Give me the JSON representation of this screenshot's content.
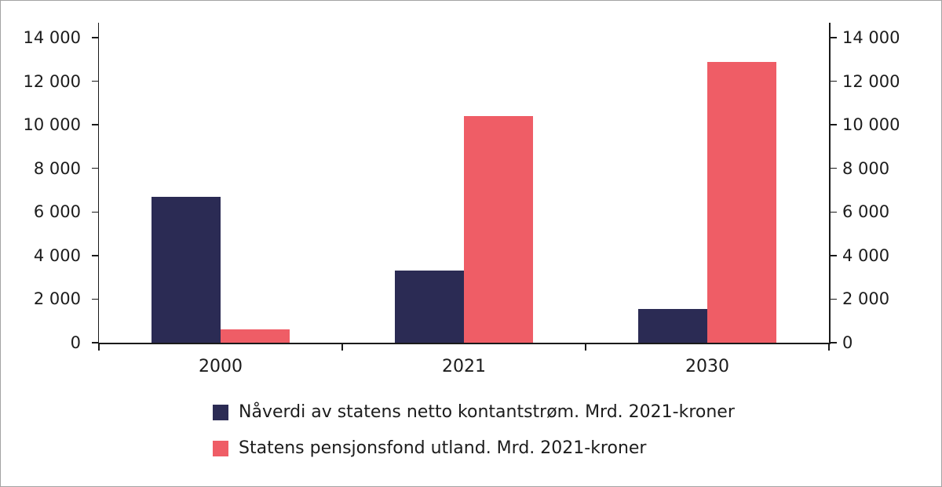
{
  "chart_data": {
    "type": "bar",
    "categories": [
      "2000",
      "2021",
      "2030"
    ],
    "series": [
      {
        "name": "Nåverdi av statens netto kontantstrøm. Mrd. 2021-kroner",
        "color": "#2b2b54",
        "values": [
          6700,
          3300,
          1550
        ]
      },
      {
        "name": "Statens pensjonsfond utland. Mrd. 2021-kroner",
        "color": "#ef5d66",
        "values": [
          600,
          10400,
          12900
        ]
      }
    ],
    "ylim": [
      0,
      14000
    ],
    "ytick_step": 2000,
    "ytick_labels": [
      "0",
      "2 000",
      "4 000",
      "6 000",
      "8 000",
      "10 000",
      "12 000",
      "14 000"
    ],
    "grid": false,
    "legend_position": "bottom",
    "y_axis_sides": "both"
  },
  "colors": {
    "axis": "#1a1a1a",
    "text": "#1c1c1c",
    "border": "#a3a3a3",
    "background": "#ffffff"
  }
}
